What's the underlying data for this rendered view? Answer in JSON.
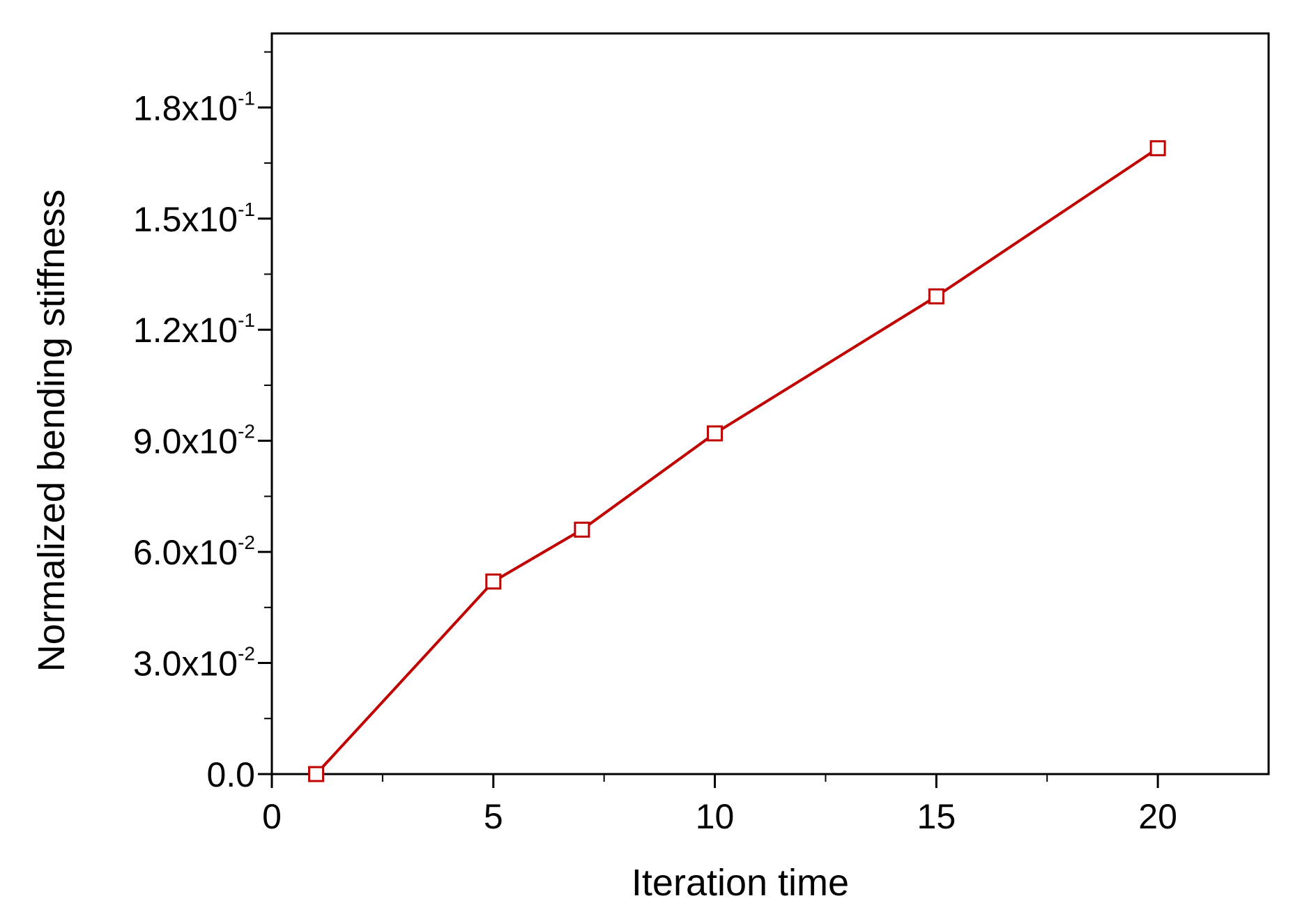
{
  "chart_data": {
    "type": "line",
    "title": "",
    "xlabel": "Iteration time",
    "ylabel": "Normalized bending stiffness",
    "xlim": [
      0,
      22.5
    ],
    "ylim": [
      0,
      0.2
    ],
    "x_ticks": [
      {
        "value": 0,
        "label": "0"
      },
      {
        "value": 5,
        "label": "5"
      },
      {
        "value": 10,
        "label": "10"
      },
      {
        "value": 15,
        "label": "15"
      },
      {
        "value": 20,
        "label": "20"
      }
    ],
    "y_ticks": [
      {
        "value": 0.0,
        "mantissa": "0.0",
        "exponent": ""
      },
      {
        "value": 0.03,
        "mantissa": "3.0x10",
        "exponent": "-2"
      },
      {
        "value": 0.06,
        "mantissa": "6.0x10",
        "exponent": "-2"
      },
      {
        "value": 0.09,
        "mantissa": "9.0x10",
        "exponent": "-2"
      },
      {
        "value": 0.12,
        "mantissa": "1.2x10",
        "exponent": "-1"
      },
      {
        "value": 0.15,
        "mantissa": "1.5x10",
        "exponent": "-1"
      },
      {
        "value": 0.18,
        "mantissa": "1.8x10",
        "exponent": "-1"
      }
    ],
    "grid": false,
    "series": [
      {
        "color": "#c00000",
        "marker": "open-square",
        "x": [
          1,
          5,
          7,
          10,
          15,
          20
        ],
        "y": [
          0.0,
          0.052,
          0.066,
          0.092,
          0.129,
          0.169
        ]
      }
    ]
  }
}
